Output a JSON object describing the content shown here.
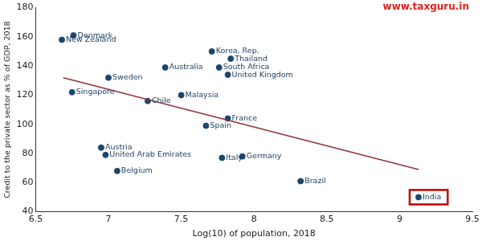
{
  "chart_data": {
    "type": "scatter",
    "x_label": "Log(10) of population, 2018",
    "y_label": "Credit to the private sector as % of GDP, 2018",
    "xlim": [
      6.5,
      9.5
    ],
    "xticks": [
      6.5,
      7,
      7.5,
      8,
      8.5,
      9,
      9.5
    ],
    "ylim": [
      40,
      180
    ],
    "yticks": [
      40,
      60,
      80,
      100,
      120,
      140,
      160,
      180
    ],
    "grid": false,
    "color": "#1a476f",
    "marker": "circle",
    "points": [
      {
        "label": "Denmark",
        "x": 6.76,
        "y": 161
      },
      {
        "label": "New Zealand",
        "x": 6.68,
        "y": 158
      },
      {
        "label": "Korea, Rep.",
        "x": 7.71,
        "y": 150
      },
      {
        "label": "Thailand",
        "x": 7.84,
        "y": 145
      },
      {
        "label": "Australia",
        "x": 7.39,
        "y": 139
      },
      {
        "label": "South Africa",
        "x": 7.76,
        "y": 139
      },
      {
        "label": "United Kingdom",
        "x": 7.82,
        "y": 134
      },
      {
        "label": "Sweden",
        "x": 7.0,
        "y": 132
      },
      {
        "label": "Singapore",
        "x": 6.75,
        "y": 122
      },
      {
        "label": "Malaysia",
        "x": 7.5,
        "y": 120
      },
      {
        "label": "Chile",
        "x": 7.27,
        "y": 116
      },
      {
        "label": "France",
        "x": 7.82,
        "y": 104
      },
      {
        "label": "Spain",
        "x": 7.67,
        "y": 99
      },
      {
        "label": "Austria",
        "x": 6.95,
        "y": 84
      },
      {
        "label": "United Arab Emirates",
        "x": 6.98,
        "y": 79
      },
      {
        "label": "Germany",
        "x": 7.92,
        "y": 78
      },
      {
        "label": "Italy",
        "x": 7.78,
        "y": 77
      },
      {
        "label": "Belgium",
        "x": 7.06,
        "y": 68
      },
      {
        "label": "Brazil",
        "x": 8.32,
        "y": 61
      },
      {
        "label": "India",
        "x": 9.13,
        "y": 50
      }
    ],
    "fit_line": {
      "x": [
        6.69,
        9.13
      ],
      "y": [
        132,
        69
      ],
      "color": "#90353b",
      "line_style": "solid"
    },
    "highlight": {
      "label": "India",
      "color": "#c00000"
    },
    "watermark": {
      "text": "www.taxguru.in",
      "color": "#e0201b"
    }
  }
}
